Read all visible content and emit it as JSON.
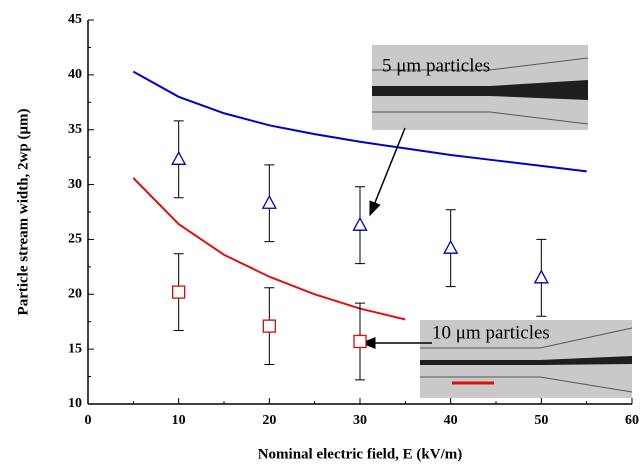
{
  "chart_data": {
    "type": "scatter",
    "x_label": "Nominal electric field, E  (kV/m)",
    "y_label": "Particle stream width, 2wp  (μm)",
    "xlim": [
      0,
      60
    ],
    "xticks": [
      0,
      10,
      20,
      30,
      40,
      50,
      60
    ],
    "ylim": [
      10,
      45
    ],
    "yticks": [
      10,
      15,
      20,
      25,
      30,
      35,
      40,
      45
    ],
    "series": [
      {
        "kind": "line",
        "color": "#0000cc",
        "x": [
          5,
          10,
          15,
          20,
          25,
          30,
          35,
          40,
          45,
          50,
          55
        ],
        "values": [
          40.3,
          38.0,
          36.5,
          35.4,
          34.6,
          33.9,
          33.3,
          32.7,
          32.2,
          31.7,
          31.2
        ]
      },
      {
        "kind": "line",
        "color": "#e01010",
        "x": [
          5,
          10,
          15,
          20,
          25,
          30,
          35
        ],
        "values": [
          30.6,
          26.4,
          23.6,
          21.6,
          20.0,
          18.7,
          17.7
        ]
      },
      {
        "kind": "triangle",
        "color": "#0000aa",
        "x": [
          10,
          20,
          30,
          40,
          50
        ],
        "values": [
          32.3,
          28.3,
          26.3,
          24.2,
          21.5
        ],
        "errors": [
          3.5,
          3.5,
          3.5,
          3.5,
          3.5
        ]
      },
      {
        "kind": "square",
        "color": "#cc1010",
        "x": [
          10,
          20,
          30
        ],
        "values": [
          20.2,
          17.1,
          15.7
        ],
        "errors": [
          3.5,
          3.5,
          3.5
        ]
      }
    ],
    "annotations": [
      "5 μm particles",
      "10 μm particles"
    ]
  }
}
